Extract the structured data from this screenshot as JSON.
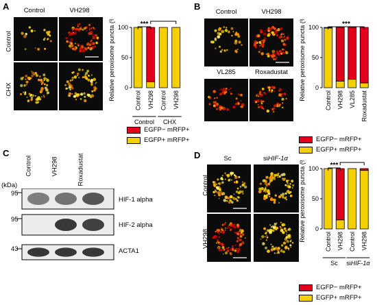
{
  "panels": {
    "A": {
      "label": "A",
      "col_labels": [
        "Control",
        "VH298"
      ],
      "row_labels": [
        "Control",
        "CHX"
      ],
      "chart_data": {
        "type": "bar",
        "stacked": true,
        "ylabel": "Relative peroxisome puncta (%)",
        "ylim": [
          0,
          100
        ],
        "yticks": [
          0,
          50,
          100
        ],
        "categories": [
          "Control",
          "VH298",
          "Control",
          "VH298"
        ],
        "groups": [
          {
            "label": "Control",
            "span": [
              0,
              1
            ]
          },
          {
            "label": "CHX",
            "span": [
              2,
              3
            ]
          }
        ],
        "series": [
          {
            "name": "EGFP+ mRFP+",
            "color": "#f5d000",
            "values": [
              100,
              10,
              100,
              100
            ]
          },
          {
            "name": "EGFP− mRFP+",
            "color": "#e3001b",
            "values": [
              0,
              90,
              0,
              0
            ]
          }
        ],
        "significance": [
          {
            "between": [
              0,
              1
            ],
            "label": "***"
          },
          {
            "between": [
              1,
              3
            ],
            "label": "***"
          }
        ]
      }
    },
    "B": {
      "label": "B",
      "image_labels": [
        "Control",
        "VH298",
        "VL285",
        "Roxadustat"
      ],
      "chart_data": {
        "type": "bar",
        "stacked": true,
        "ylabel": "Relative peroxisome puncta (%)",
        "ylim": [
          0,
          100
        ],
        "yticks": [
          0,
          50,
          100
        ],
        "categories": [
          "Control",
          "VH298",
          "VL285",
          "Roxadustat"
        ],
        "series": [
          {
            "name": "EGFP+ mRFP+",
            "color": "#f5d000",
            "values": [
              99,
              11,
              14,
              8
            ]
          },
          {
            "name": "EGFP− mRFP+",
            "color": "#e3001b",
            "values": [
              1,
              89,
              86,
              92
            ]
          }
        ],
        "significance": [
          {
            "between": [
              0,
              3
            ],
            "label": "***"
          }
        ]
      }
    },
    "C": {
      "label": "C",
      "lanes": [
        "Control",
        "VH298",
        "Roxadustat"
      ],
      "kda_label": "(kDa)",
      "blots": [
        {
          "marker": "95",
          "protein": "HIF-1 alpha",
          "intensities": [
            0.55,
            0.6,
            0.75
          ]
        },
        {
          "marker": "95",
          "protein": "HIF-2 alpha",
          "intensities": [
            0.0,
            0.9,
            0.85
          ]
        },
        {
          "marker": "43",
          "protein": "ACTA1",
          "intensities": [
            0.9,
            0.9,
            0.9
          ]
        }
      ]
    },
    "D": {
      "label": "D",
      "col_labels": [
        "Sc",
        "si",
        "HIF-1α"
      ],
      "row_labels": [
        "Control",
        "VH298"
      ],
      "chart_data": {
        "type": "bar",
        "stacked": true,
        "ylabel": "Relative peroxisome puncta (%)",
        "ylim": [
          0,
          100
        ],
        "yticks": [
          0,
          50,
          100
        ],
        "categories": [
          "Control",
          "VH298",
          "Control",
          "VH298"
        ],
        "groups": [
          {
            "label": "Sc",
            "label_italic": "",
            "span": [
              0,
              1
            ]
          },
          {
            "label": "si",
            "label_italic": "HIF-1α",
            "span": [
              2,
              3
            ]
          }
        ],
        "series": [
          {
            "name": "EGFP+ mRFP+",
            "color": "#f5d000",
            "values": [
              100,
              15,
              100,
              97
            ]
          },
          {
            "name": "EGFP− mRFP+",
            "color": "#e3001b",
            "values": [
              0,
              85,
              0,
              3
            ]
          }
        ],
        "significance": [
          {
            "between": [
              0,
              1
            ],
            "label": "***"
          },
          {
            "between": [
              1,
              3
            ],
            "label": "***"
          }
        ]
      }
    }
  },
  "legend": [
    {
      "label": "EGFP− mRFP+",
      "color": "#e3001b"
    },
    {
      "label": "EGFP+ mRFP+",
      "color": "#f5d000"
    }
  ]
}
